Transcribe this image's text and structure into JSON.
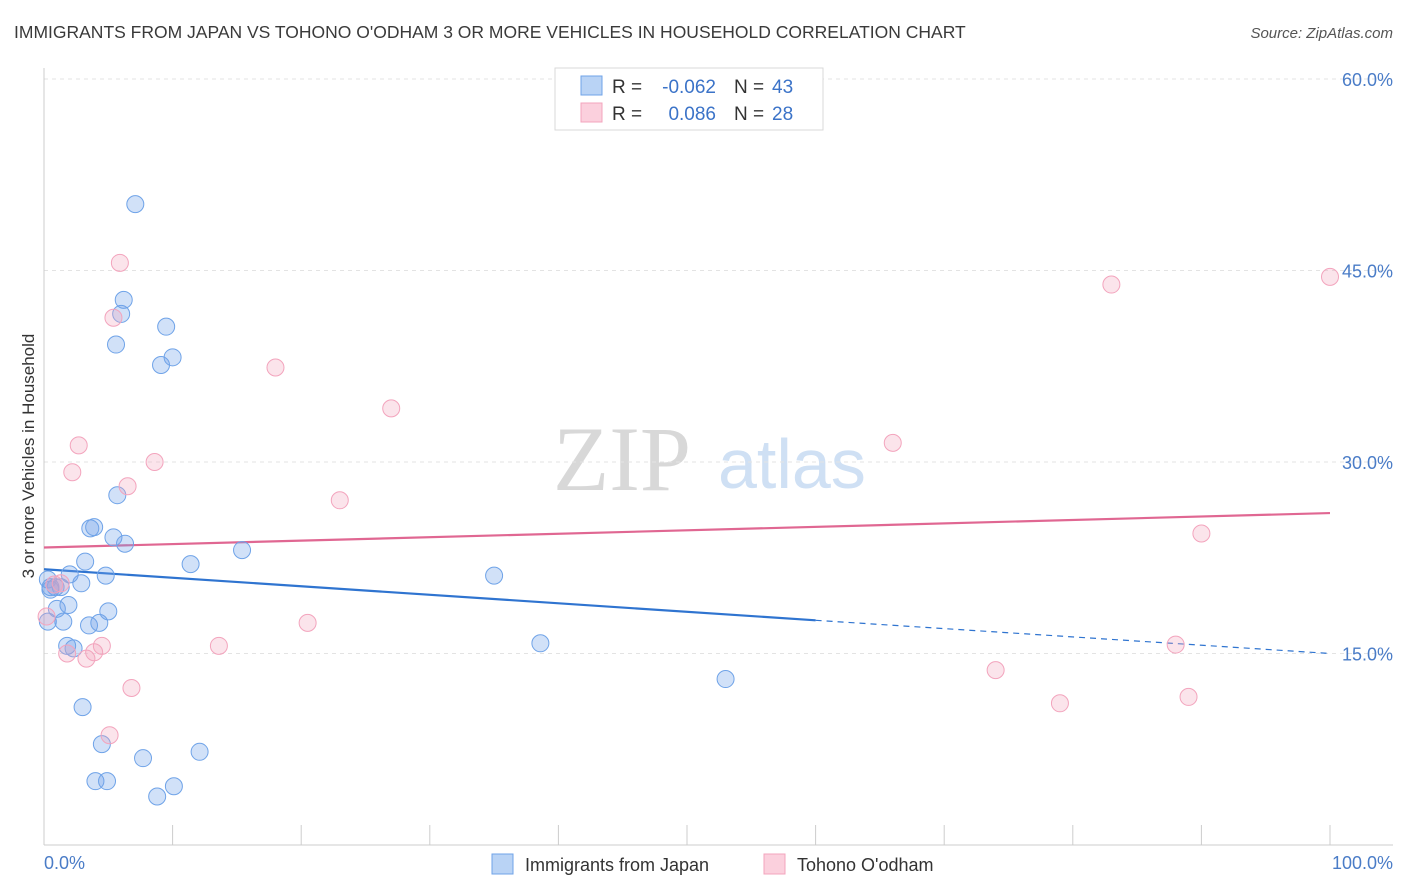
{
  "chart_data": {
    "type": "scatter",
    "title": "IMMIGRANTS FROM JAPAN VS TOHONO O'ODHAM 3 OR MORE VEHICLES IN HOUSEHOLD CORRELATION CHART",
    "source": "Source: ZipAtlas.com",
    "watermark": {
      "zip": "ZIP",
      "atlas": "atlas"
    },
    "xlabel": "",
    "ylabel": "3 or more Vehicles in Household",
    "xlim": [
      0,
      100
    ],
    "ylim": [
      0,
      60
    ],
    "x_tick_labels": {
      "left": "0.0%",
      "right": "100.0%"
    },
    "y_ticks": [
      {
        "value": 15,
        "label": "15.0%"
      },
      {
        "value": 30,
        "label": "30.0%"
      },
      {
        "value": 45,
        "label": "45.0%"
      },
      {
        "value": 60,
        "label": "60.0%"
      }
    ],
    "grid": true,
    "series": [
      {
        "name": "Immigrants from Japan",
        "color": "#6fa3e8",
        "line_color": "#2f74d0",
        "stats": {
          "r_label": "R =",
          "r": "-0.062",
          "n_label": "N =",
          "n": "43"
        },
        "trend": {
          "x0": 0,
          "y0": 21.6,
          "x1": 60,
          "y1": 17.6,
          "dash_x1": 100,
          "dash_y1": 15.0
        },
        "points": [
          [
            0.3,
            20.8
          ],
          [
            0.3,
            17.5
          ],
          [
            0.5,
            20.0
          ],
          [
            1.0,
            18.5
          ],
          [
            1.3,
            20.2
          ],
          [
            1.5,
            17.5
          ],
          [
            1.8,
            15.6
          ],
          [
            1.9,
            18.8
          ],
          [
            2.0,
            21.2
          ],
          [
            2.3,
            15.4
          ],
          [
            2.9,
            20.5
          ],
          [
            3.0,
            10.8
          ],
          [
            3.2,
            22.2
          ],
          [
            3.5,
            17.2
          ],
          [
            3.6,
            24.8
          ],
          [
            3.9,
            24.9
          ],
          [
            4.0,
            5.0
          ],
          [
            4.3,
            17.4
          ],
          [
            4.5,
            7.9
          ],
          [
            4.8,
            21.1
          ],
          [
            4.9,
            5.0
          ],
          [
            5.0,
            18.3
          ],
          [
            5.4,
            24.1
          ],
          [
            5.6,
            39.2
          ],
          [
            5.7,
            27.4
          ],
          [
            6.0,
            41.6
          ],
          [
            6.2,
            42.7
          ],
          [
            6.3,
            23.6
          ],
          [
            7.1,
            50.2
          ],
          [
            7.7,
            6.8
          ],
          [
            8.8,
            3.8
          ],
          [
            9.1,
            37.6
          ],
          [
            9.5,
            40.6
          ],
          [
            10.0,
            38.2
          ],
          [
            10.1,
            4.6
          ],
          [
            11.4,
            22.0
          ],
          [
            12.1,
            7.3
          ],
          [
            15.4,
            23.1
          ],
          [
            35.0,
            21.1
          ],
          [
            38.6,
            15.8
          ],
          [
            53.0,
            13.0
          ],
          [
            0.5,
            20.2
          ],
          [
            0.9,
            20.2
          ]
        ]
      },
      {
        "name": "Tohono O'odham",
        "color": "#f3a4bd",
        "line_color": "#e06792",
        "stats": {
          "r_label": "R =",
          "r": "0.086",
          "n_label": "N =",
          "n": "28"
        },
        "trend": {
          "x0": 0,
          "y0": 23.3,
          "x1": 100,
          "y1": 26.0
        },
        "points": [
          [
            0.2,
            17.9
          ],
          [
            1.3,
            20.5
          ],
          [
            1.8,
            15.0
          ],
          [
            2.2,
            29.2
          ],
          [
            2.7,
            31.3
          ],
          [
            3.3,
            14.6
          ],
          [
            3.9,
            15.1
          ],
          [
            4.5,
            15.6
          ],
          [
            5.1,
            8.6
          ],
          [
            5.4,
            41.3
          ],
          [
            5.9,
            45.6
          ],
          [
            6.5,
            28.1
          ],
          [
            6.8,
            12.3
          ],
          [
            8.6,
            30.0
          ],
          [
            13.6,
            15.6
          ],
          [
            18.0,
            37.4
          ],
          [
            20.5,
            17.4
          ],
          [
            23.0,
            27.0
          ],
          [
            27.0,
            34.2
          ],
          [
            66.0,
            31.5
          ],
          [
            74.0,
            13.7
          ],
          [
            79.0,
            11.1
          ],
          [
            83.0,
            43.9
          ],
          [
            88.0,
            15.7
          ],
          [
            89.0,
            11.6
          ],
          [
            90.0,
            24.4
          ],
          [
            100.0,
            44.5
          ],
          [
            0.8,
            20.4
          ]
        ]
      }
    ]
  }
}
